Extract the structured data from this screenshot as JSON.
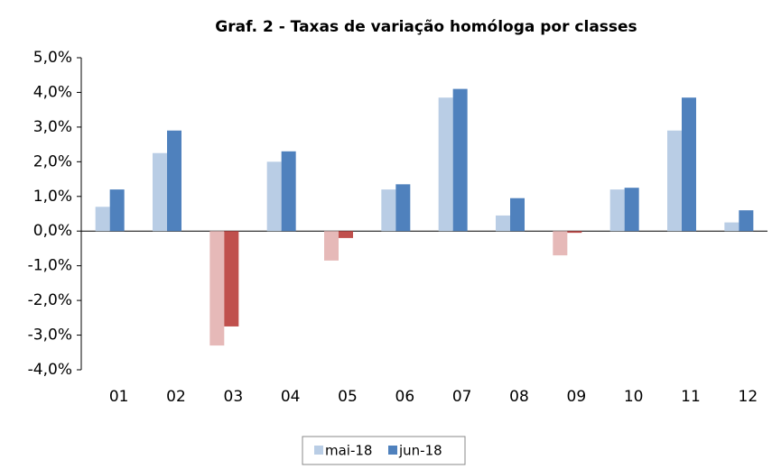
{
  "chart_data": {
    "type": "bar",
    "title": "Graf. 2 - Taxas de variação homóloga por classes",
    "categories": [
      "01",
      "02",
      "03",
      "04",
      "05",
      "06",
      "07",
      "08",
      "09",
      "10",
      "11",
      "12"
    ],
    "series": [
      {
        "name": "mai-18",
        "color": "#b9cde5",
        "negative_color": "#e6b9b8",
        "values": [
          0.7,
          2.25,
          -3.3,
          2.0,
          -0.85,
          1.2,
          3.85,
          0.45,
          -0.7,
          1.2,
          2.9,
          0.25
        ]
      },
      {
        "name": "jun-18",
        "color": "#4f81bd",
        "negative_color": "#c0504d",
        "values": [
          1.2,
          2.9,
          -2.75,
          2.3,
          -0.2,
          1.35,
          4.1,
          0.95,
          -0.05,
          1.25,
          3.85,
          0.6
        ]
      }
    ],
    "ylim": [
      -4,
      5
    ],
    "yticks": [
      {
        "value": -4,
        "label": "-4,0%"
      },
      {
        "value": -3,
        "label": "-3,0%"
      },
      {
        "value": -2,
        "label": "-2,0%"
      },
      {
        "value": -1,
        "label": "-1,0%"
      },
      {
        "value": 0,
        "label": "0,0%"
      },
      {
        "value": 1,
        "label": "1,0%"
      },
      {
        "value": 2,
        "label": "2,0%"
      },
      {
        "value": 3,
        "label": "3,0%"
      },
      {
        "value": 4,
        "label": "4,0%"
      },
      {
        "value": 5,
        "label": "5,0%"
      }
    ],
    "grid": false,
    "legend": "bottom"
  }
}
